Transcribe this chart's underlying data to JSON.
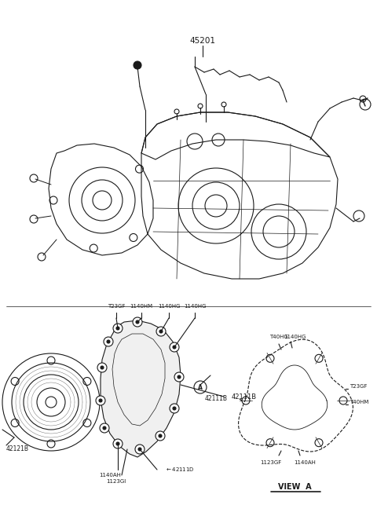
{
  "bg_color": "#ffffff",
  "lc": "#1a1a1a",
  "figsize": [
    4.8,
    6.57
  ],
  "dpi": 100,
  "top_label": "45201",
  "bottom_labels_left": [
    "T23GF",
    "1140HM",
    "1140HG",
    "1140HG"
  ],
  "bottom_labels_right": [
    "T40HG1140HG",
    "1123GF",
    "1140AH",
    "T23GF",
    "T40HM"
  ],
  "part_ids": [
    "42121B",
    "42111B",
    "1140AH",
    "1123GI",
    "42111D"
  ],
  "view_label": "VIEW  A"
}
